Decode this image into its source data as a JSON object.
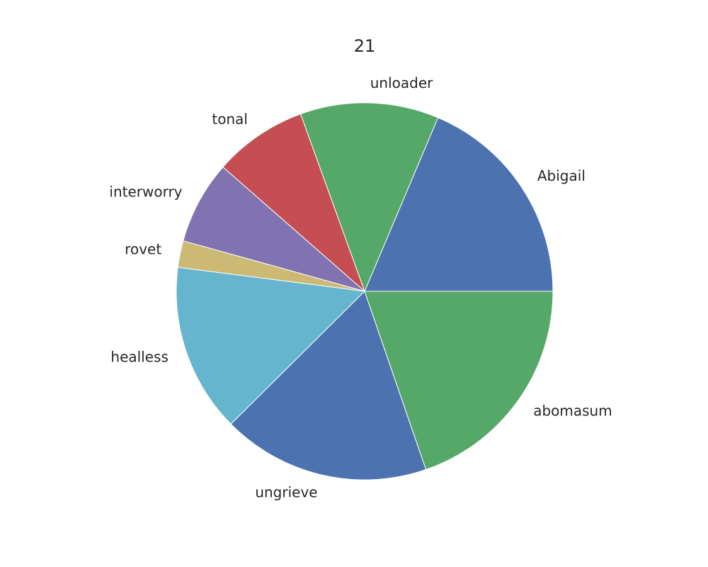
{
  "chart_data": {
    "type": "pie",
    "title": "21",
    "start_angle": 0,
    "direction": "counterclockwise",
    "slices": [
      {
        "label": "Abigail",
        "value": 18.8,
        "color": "#4c72b0"
      },
      {
        "label": "unloader",
        "value": 12.0,
        "color": "#55a868"
      },
      {
        "label": "tonal",
        "value": 8.1,
        "color": "#c44e52"
      },
      {
        "label": "interworry",
        "value": 7.2,
        "color": "#8172b2"
      },
      {
        "label": "rovet",
        "value": 2.3,
        "color": "#ccb974"
      },
      {
        "label": "healless",
        "value": 14.6,
        "color": "#64b5cd"
      },
      {
        "label": "ungrieve",
        "value": 18.0,
        "color": "#4c72b0"
      },
      {
        "label": "abomasum",
        "value": 19.9,
        "color": "#55a868"
      }
    ]
  }
}
